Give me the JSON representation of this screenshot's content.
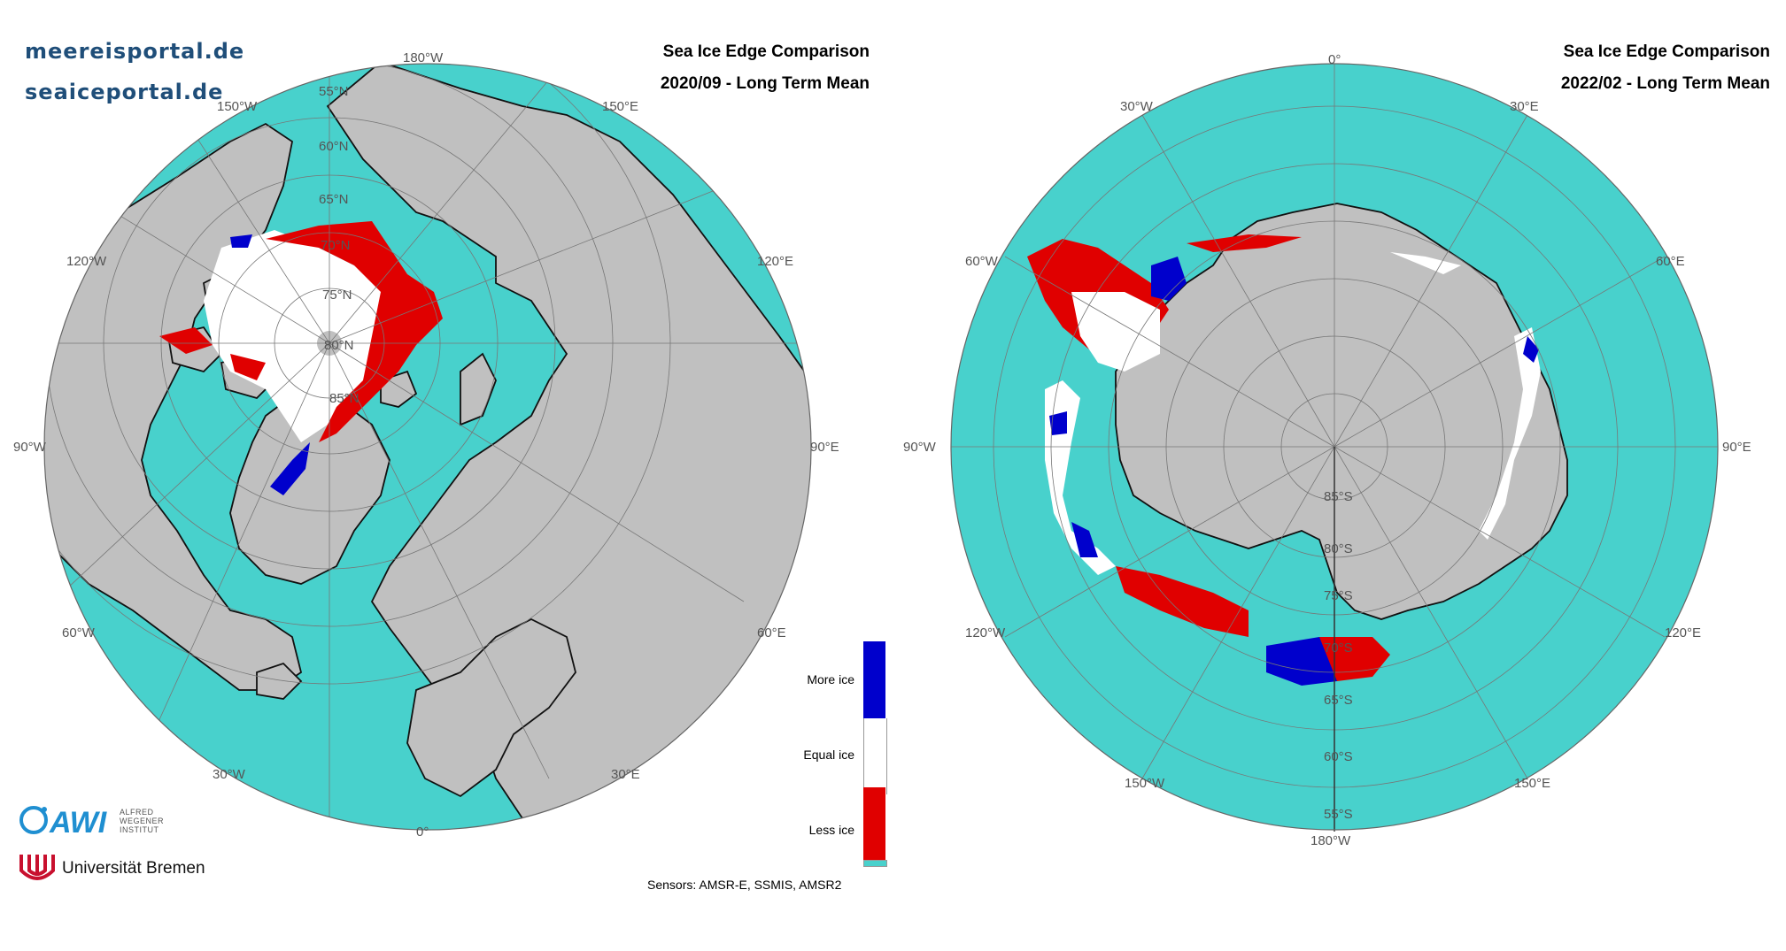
{
  "header": {
    "portal_de": "meereisportal.de",
    "portal_en": "seaiceportal.de"
  },
  "maps": [
    {
      "title_line1": "Sea Ice Edge Comparison",
      "title_line2": "2020/09 - Long Term Mean",
      "lat_labels": [
        "55°N",
        "60°N",
        "65°N",
        "70°N",
        "75°N",
        "80°N",
        "85°N"
      ],
      "lon_labels": [
        "180°W",
        "150°E",
        "120°E",
        "90°E",
        "60°E",
        "30°E",
        "0°",
        "30°W",
        "60°W",
        "90°W",
        "120°W",
        "150°W"
      ]
    },
    {
      "title_line1": "Sea Ice Edge Comparison",
      "title_line2": "2022/02 - Long Term Mean",
      "lat_labels": [
        "55°S",
        "60°S",
        "65°S",
        "70°S",
        "75°S",
        "80°S",
        "85°S"
      ],
      "lon_labels": [
        "0°",
        "30°E",
        "60°E",
        "90°E",
        "120°E",
        "150°E",
        "180°W",
        "150°W",
        "120°W",
        "90°W",
        "60°W",
        "30°W"
      ]
    }
  ],
  "legend": {
    "more": "More ice",
    "equal": "Equal ice",
    "less": "Less ice",
    "colors": {
      "more": "#0000cc",
      "equal": "#ffffff",
      "less": "#e00000",
      "ocean": "#48d1cc",
      "land": "#c0c0c0"
    }
  },
  "sensors": "Sensors: AMSR-E, SSMIS, AMSR2",
  "logos": {
    "awi_line1": "ALFRED",
    "awi_line2": "WEGENER",
    "awi_line3": "INSTITUT",
    "uni": "Universität Bremen"
  }
}
